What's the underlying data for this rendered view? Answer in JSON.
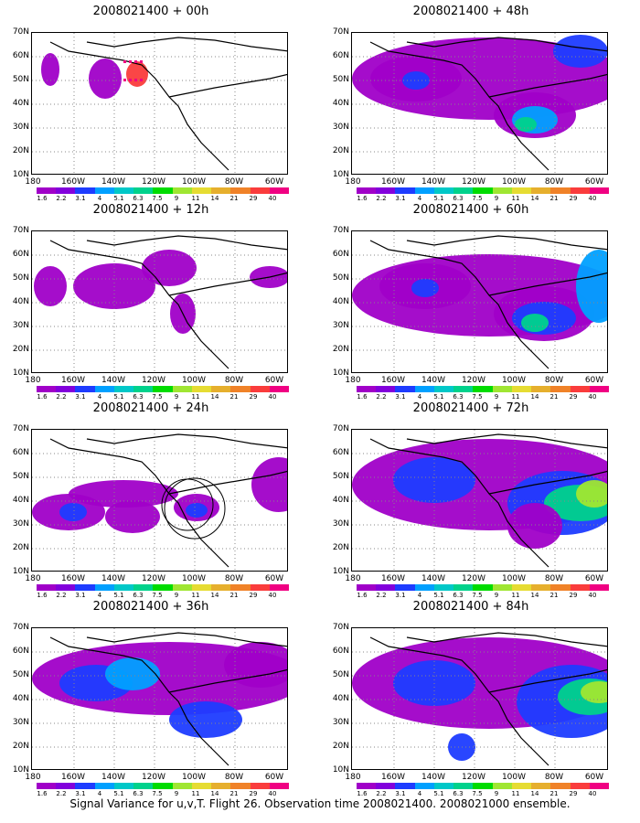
{
  "caption": "Signal Variance for u,v,T. Flight 26. Observation time 2008021400. 2008021000 ensemble.",
  "lat_labels": [
    "70N",
    "60N",
    "50N",
    "40N",
    "30N",
    "20N",
    "10N"
  ],
  "lon_labels": [
    "180",
    "160W",
    "140W",
    "120W",
    "100W",
    "80W",
    "60W"
  ],
  "colorbar_labels": [
    "1.6",
    "2.2",
    "3.1",
    "4",
    "5.1",
    "6.3",
    "7.5",
    "9",
    "11",
    "14",
    "21",
    "29",
    "40"
  ],
  "colorbar_colors": [
    "#a000c8",
    "#8200dc",
    "#1e3cff",
    "#00a0ff",
    "#00c8c8",
    "#00d28c",
    "#00dc00",
    "#a0e632",
    "#e6dc32",
    "#e6af2d",
    "#f08228",
    "#fa3c3c",
    "#f00082"
  ],
  "panels": [
    {
      "title": "2008021400 + 00h"
    },
    {
      "title": "2008021400 + 48h"
    },
    {
      "title": "2008021400 + 12h"
    },
    {
      "title": "2008021400 + 60h"
    },
    {
      "title": "2008021400 + 24h"
    },
    {
      "title": "2008021400 + 72h"
    },
    {
      "title": "2008021400 + 36h"
    },
    {
      "title": "2008021400 + 84h"
    }
  ]
}
